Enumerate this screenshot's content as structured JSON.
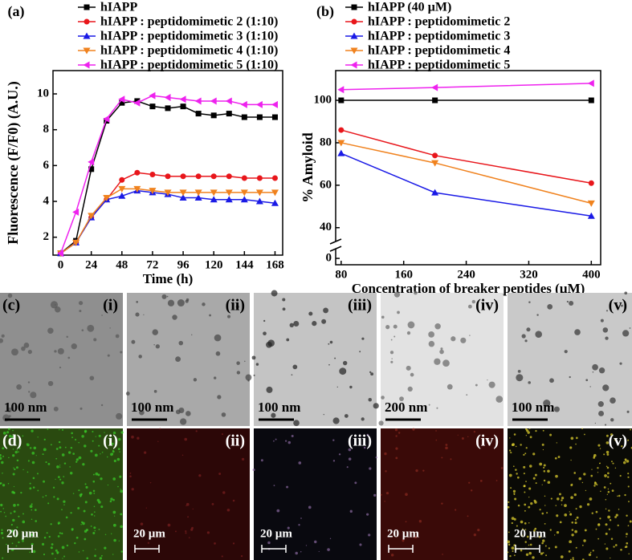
{
  "chart_data": [
    {
      "type": "line",
      "panel": "(a)",
      "x_label": "Time (h)",
      "y_label": "Fluorescence (F/F0) (A.U.)",
      "x": [
        0,
        12,
        24,
        36,
        48,
        60,
        72,
        84,
        96,
        108,
        120,
        132,
        144,
        156,
        168
      ],
      "xlim": [
        -6,
        174
      ],
      "xticks": [
        0,
        24,
        48,
        72,
        96,
        120,
        144,
        168
      ],
      "ylim": [
        1,
        11.3
      ],
      "yticks": [
        2,
        4,
        6,
        8,
        10
      ],
      "series": [
        {
          "name": "hIAPP",
          "color": "#000000",
          "marker": "square",
          "values": [
            1.1,
            1.8,
            5.8,
            8.5,
            9.5,
            9.6,
            9.3,
            9.2,
            9.3,
            8.9,
            8.8,
            8.9,
            8.7,
            8.7,
            8.7
          ]
        },
        {
          "name": "hIAPP : peptidomimetic 2 (1:10)",
          "color": "#e8161b",
          "marker": "circle",
          "values": [
            1.1,
            1.7,
            3.1,
            4.1,
            5.2,
            5.6,
            5.5,
            5.4,
            5.4,
            5.4,
            5.4,
            5.4,
            5.3,
            5.3,
            5.3
          ]
        },
        {
          "name": "hIAPP : peptidomimetic 3 (1:10)",
          "color": "#1a1ae6",
          "marker": "triangle-up",
          "values": [
            1.1,
            1.7,
            3.1,
            4.1,
            4.3,
            4.6,
            4.5,
            4.4,
            4.2,
            4.2,
            4.1,
            4.1,
            4.1,
            4.0,
            3.9
          ]
        },
        {
          "name": "hIAPP : peptidomimetic 4 (1:10)",
          "color": "#f0821e",
          "marker": "triangle-down",
          "values": [
            1.1,
            1.7,
            3.2,
            4.2,
            4.7,
            4.7,
            4.6,
            4.5,
            4.5,
            4.5,
            4.5,
            4.5,
            4.5,
            4.5,
            4.5
          ]
        },
        {
          "name": "hIAPP : peptidomimetic 5 (1:10)",
          "color": "#ee22ee",
          "marker": "triangle-left",
          "values": [
            1.1,
            3.4,
            6.2,
            8.6,
            9.7,
            9.5,
            9.9,
            9.8,
            9.7,
            9.6,
            9.6,
            9.6,
            9.4,
            9.4,
            9.4
          ]
        }
      ]
    },
    {
      "type": "line",
      "panel": "(b)",
      "x_label": "Concentration of breaker peptides (µM)",
      "y_label": "% Amyloid",
      "x": [
        80,
        200,
        400
      ],
      "xlim": [
        73,
        412
      ],
      "xticks": [
        80,
        160,
        240,
        320,
        400
      ],
      "ylim": [
        -3,
        114
      ],
      "ybreak": [
        3,
        35
      ],
      "yticks": [
        0,
        40,
        60,
        80,
        100
      ],
      "series": [
        {
          "name": "hIAPP  (40 µM)",
          "color": "#000000",
          "marker": "square",
          "values": [
            100,
            100,
            100
          ]
        },
        {
          "name": "hIAPP : peptidomimetic 2",
          "color": "#e8161b",
          "marker": "circle",
          "values": [
            86,
            74,
            61
          ]
        },
        {
          "name": "hIAPP : peptidomimetic 3",
          "color": "#1a1ae6",
          "marker": "triangle-up",
          "values": [
            75,
            56.5,
            45.5
          ]
        },
        {
          "name": "hIAPP : peptidomimetic 4",
          "color": "#f0821e",
          "marker": "triangle-down",
          "values": [
            80,
            70.5,
            51.5
          ]
        },
        {
          "name": "hIAPP : peptidomimetic 5",
          "color": "#ee22ee",
          "marker": "triangle-left",
          "values": [
            105,
            106,
            108
          ]
        }
      ]
    }
  ],
  "panels": [
    {
      "label": "(c)",
      "items": [
        {
          "tag": "(i)",
          "scale": "100 nm"
        },
        {
          "tag": "(ii)",
          "scale": "100 nm"
        },
        {
          "tag": "(iii)",
          "scale": "100 nm"
        },
        {
          "tag": "(iv)",
          "scale": "200 nm"
        },
        {
          "tag": "(v)",
          "scale": "100 nm"
        }
      ]
    },
    {
      "label": "(d)",
      "items": [
        {
          "tag": "(i)",
          "scale": "20 µm"
        },
        {
          "tag": "(ii)",
          "scale": "20 µm"
        },
        {
          "tag": "(iii)",
          "scale": "20 µm"
        },
        {
          "tag": "(iv)",
          "scale": "20 µm"
        },
        {
          "tag": "(v)",
          "scale": "20 µm"
        }
      ]
    }
  ]
}
